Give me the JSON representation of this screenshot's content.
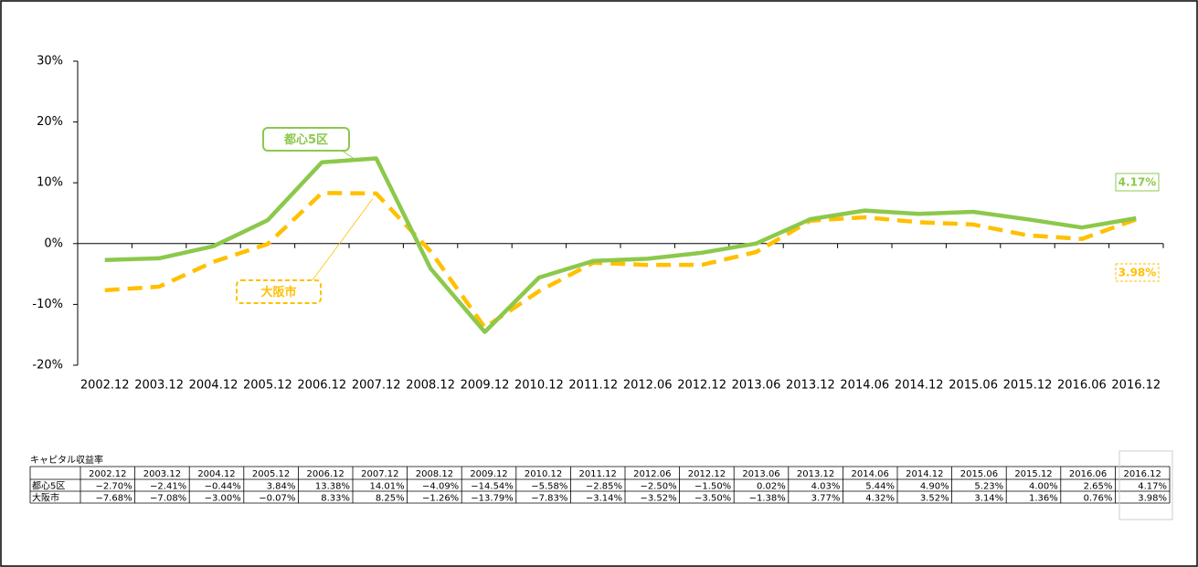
{
  "chart_data": {
    "type": "line",
    "categories": [
      "2002.12",
      "2003.12",
      "2004.12",
      "2005.12",
      "2006.12",
      "2007.12",
      "2008.12",
      "2009.12",
      "2010.12",
      "2011.12",
      "2012.06",
      "2012.12",
      "2013.06",
      "2013.12",
      "2014.06",
      "2014.12",
      "2015.06",
      "2015.12",
      "2016.06",
      "2016.12"
    ],
    "series": [
      {
        "name": "都心5区",
        "color": "#8cc84b",
        "dashed": false,
        "end_label": "4.17%",
        "values": [
          -2.7,
          -2.41,
          -0.44,
          3.84,
          13.38,
          14.01,
          -4.09,
          -14.54,
          -5.58,
          -2.85,
          -2.5,
          -1.5,
          0.02,
          4.03,
          5.44,
          4.9,
          5.23,
          4.0,
          2.65,
          4.17
        ],
        "value_labels": [
          "−2.70%",
          "−2.41%",
          "−0.44%",
          "3.84%",
          "13.38%",
          "14.01%",
          "−4.09%",
          "−14.54%",
          "−5.58%",
          "−2.85%",
          "−2.50%",
          "−1.50%",
          "0.02%",
          "4.03%",
          "5.44%",
          "4.90%",
          "5.23%",
          "4.00%",
          "2.65%",
          "4.17%"
        ]
      },
      {
        "name": "大阪市",
        "color": "#ffc000",
        "dashed": true,
        "end_label": "3.98%",
        "values": [
          -7.68,
          -7.08,
          -3.0,
          -0.07,
          8.33,
          8.25,
          -1.26,
          -13.79,
          -7.83,
          -3.14,
          -3.52,
          -3.5,
          -1.38,
          3.77,
          4.32,
          3.52,
          3.14,
          1.36,
          0.76,
          3.98
        ],
        "value_labels": [
          "−7.68%",
          "−7.08%",
          "−3.00%",
          "−0.07%",
          "8.33%",
          "8.25%",
          "−1.26%",
          "−13.79%",
          "−7.83%",
          "−3.14%",
          "−3.52%",
          "−3.50%",
          "−1.38%",
          "3.77%",
          "4.32%",
          "3.52%",
          "3.14%",
          "1.36%",
          "0.76%",
          "3.98%"
        ]
      }
    ],
    "ylim": [
      -20,
      30
    ],
    "yticks": [
      {
        "value": -20,
        "label": "-20%"
      },
      {
        "value": -10,
        "label": "-10%"
      },
      {
        "value": 0,
        "label": "0%"
      },
      {
        "value": 10,
        "label": "10%"
      },
      {
        "value": 20,
        "label": "20%"
      },
      {
        "value": 30,
        "label": "30%"
      }
    ],
    "table_title": "キャピタル収益率"
  }
}
